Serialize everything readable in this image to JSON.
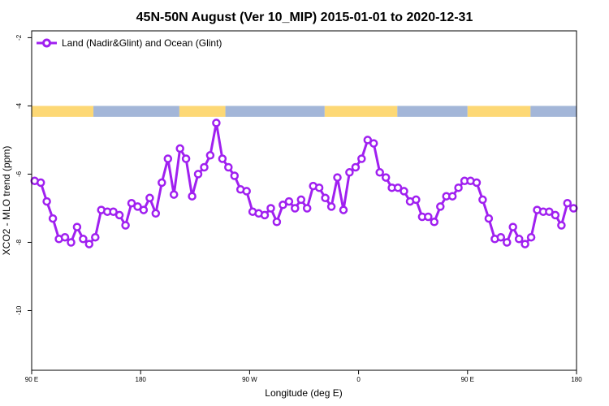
{
  "chart_data": {
    "type": "line",
    "title": "45N-50N August (Ver 10_MIP)   2015-01-01 to 2020-12-31",
    "xlabel": "Longitude (deg E)",
    "ylabel": "XCO2 - MLO trend (ppm)",
    "xlim": [
      90,
      540
    ],
    "ylim": [
      -11.75,
      -1.8
    ],
    "x_ticks": [
      {
        "value": 90,
        "label": "90 E"
      },
      {
        "value": 180,
        "label": "180"
      },
      {
        "value": 270,
        "label": "90 W"
      },
      {
        "value": 360,
        "label": "0"
      },
      {
        "value": 450,
        "label": "90 E"
      },
      {
        "value": 540,
        "label": "180"
      }
    ],
    "y_ticks": [
      {
        "value": -2,
        "label": "-2"
      },
      {
        "value": -4,
        "label": "-4"
      },
      {
        "value": -6,
        "label": "-6"
      },
      {
        "value": -8,
        "label": "-8"
      },
      {
        "value": -10,
        "label": "-10"
      }
    ],
    "grid": false,
    "legend_position": "top-left",
    "series": [
      {
        "name": "Land (Nadir&Glint) and Ocean (Glint)",
        "color": "#a020f0",
        "x": [
          92.5,
          97.5,
          102.5,
          107.5,
          112.5,
          117.5,
          122.5,
          127.5,
          132.5,
          137.5,
          142.5,
          147.5,
          152.5,
          157.5,
          162.5,
          167.5,
          172.5,
          177.5,
          182.5,
          187.5,
          192.5,
          197.5,
          202.5,
          207.5,
          212.5,
          217.5,
          222.5,
          227.5,
          232.5,
          237.5,
          242.5,
          247.5,
          252.5,
          257.5,
          262.5,
          267.5,
          272.5,
          277.5,
          282.5,
          287.5,
          292.5,
          297.5,
          302.5,
          307.5,
          312.5,
          317.5,
          322.5,
          327.5,
          332.5,
          337.5,
          342.5,
          347.5,
          352.5,
          357.5,
          362.5,
          367.5,
          372.5,
          377.5,
          382.5,
          387.5,
          392.5,
          397.5,
          402.5,
          407.5,
          412.5,
          417.5,
          422.5,
          427.5,
          432.5,
          437.5,
          442.5,
          447.5,
          452.5,
          457.5,
          462.5,
          467.5,
          472.5,
          477.5,
          482.5,
          487.5,
          492.5,
          497.5,
          502.5,
          507.5,
          512.5,
          517.5,
          522.5,
          527.5,
          532.5,
          537.5
        ],
        "values": [
          -6.2,
          -6.25,
          -6.8,
          -7.3,
          -7.9,
          -7.85,
          -8.0,
          -7.55,
          -7.9,
          -8.05,
          -7.85,
          -7.05,
          -7.1,
          -7.1,
          -7.2,
          -7.5,
          -6.85,
          -6.95,
          -7.05,
          -6.7,
          -7.15,
          -6.25,
          -5.55,
          -6.6,
          -5.25,
          -5.55,
          -6.65,
          -6.0,
          -5.8,
          -5.45,
          -4.5,
          -5.55,
          -5.8,
          -6.05,
          -6.45,
          -6.5,
          -7.1,
          -7.15,
          -7.2,
          -7.0,
          -7.4,
          -6.9,
          -6.8,
          -7.0,
          -6.75,
          -7.0,
          -6.35,
          -6.4,
          -6.7,
          -6.95,
          -6.1,
          -7.05,
          -5.95,
          -5.8,
          -5.55,
          -5.0,
          -5.1,
          -5.95,
          -6.1,
          -6.4,
          -6.4,
          -6.5,
          -6.8,
          -6.75,
          -7.25,
          -7.25,
          -7.4,
          -6.95,
          -6.65,
          -6.65,
          -6.4,
          -6.2,
          -6.2,
          -6.25,
          -6.75,
          -7.3,
          -7.9,
          -7.85,
          -8.0,
          -7.55,
          -7.9,
          -8.05,
          -7.85,
          -7.05,
          -7.1,
          -7.1,
          -7.2,
          -7.5,
          -6.85,
          -7.0
        ]
      }
    ]
  },
  "surface_strip": {
    "land_color": "#fdd875",
    "ocean_color": "#a3b6d8",
    "segments": [
      {
        "type": "land",
        "from": 90,
        "to": 141
      },
      {
        "type": "ocean",
        "from": 141,
        "to": 212
      },
      {
        "type": "land",
        "from": 212,
        "to": 250
      },
      {
        "type": "ocean",
        "from": 250,
        "to": 332
      },
      {
        "type": "land",
        "from": 332,
        "to": 392
      },
      {
        "type": "ocean",
        "from": 392,
        "to": 450
      },
      {
        "type": "land",
        "from": 450,
        "to": 502
      },
      {
        "type": "ocean",
        "from": 502,
        "to": 540
      }
    ],
    "y_top": -4.0,
    "y_bottom": -4.32
  }
}
